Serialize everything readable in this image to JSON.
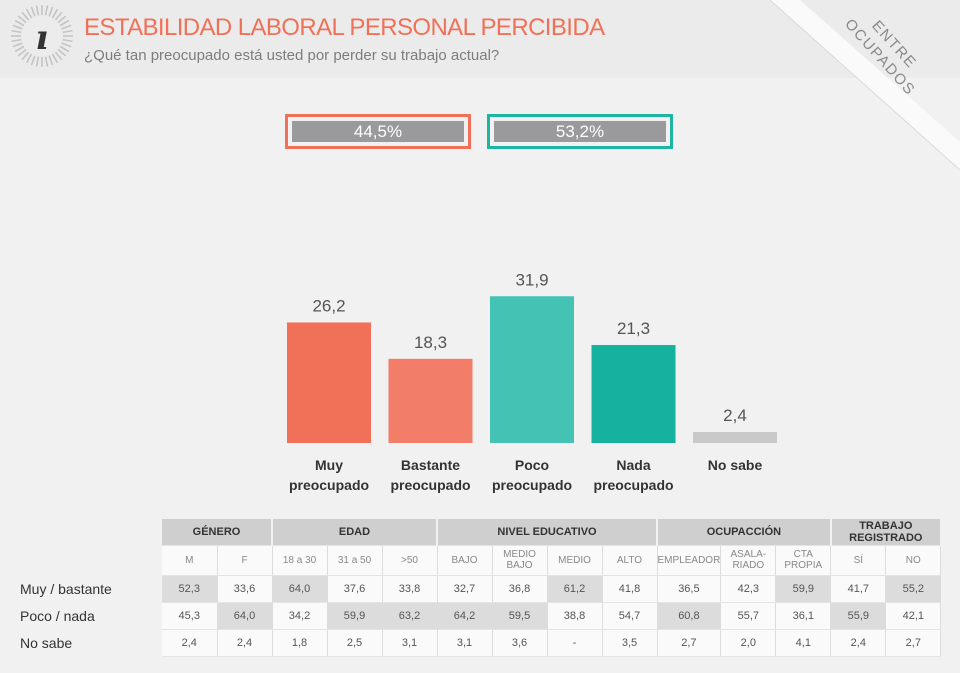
{
  "header": {
    "title": "ESTABILIDAD LABORAL PERSONAL PERCIBIDA",
    "subtitle": "¿Qué tan preocupado está usted por perder su trabajo actual?",
    "corner_label_1": "ENTRE",
    "corner_label_2": "OCUPADOS"
  },
  "summary": {
    "concerned": "44,5%",
    "not_concerned": "53,2%",
    "concerned_color": "#f07158",
    "not_concerned_color": "#1fb5a5"
  },
  "chart_data": {
    "type": "bar",
    "categories": [
      [
        "Muy",
        "preocupado"
      ],
      [
        "Bastante",
        "preocupado"
      ],
      [
        "Poco",
        "preocupado"
      ],
      [
        "Nada",
        "preocupado"
      ],
      [
        "No sabe"
      ]
    ],
    "values": [
      26.2,
      18.3,
      31.9,
      21.3,
      2.4
    ],
    "value_labels": [
      "26,2",
      "18,3",
      "31,9",
      "21,3",
      "2,4"
    ],
    "colors": [
      "#f07158",
      "#f27d68",
      "#44c3b4",
      "#14b29f",
      "#c9c9c9"
    ],
    "grid": false,
    "legend": "none"
  },
  "table": {
    "groups": [
      {
        "label": "GÉNERO",
        "span": 2
      },
      {
        "label": "EDAD",
        "span": 3
      },
      {
        "label": "NIVEL EDUCATIVO",
        "span": 4
      },
      {
        "label": "OCUPACCIÓN",
        "span": 3
      },
      {
        "label": "TRABAJO REGISTRADO",
        "span": 2
      }
    ],
    "subheaders": [
      [
        "M"
      ],
      [
        "F"
      ],
      [
        "18 a 30"
      ],
      [
        "31 a 50"
      ],
      [
        ">50"
      ],
      [
        "BAJO"
      ],
      [
        "MEDIO BAJO"
      ],
      [
        "MEDIO"
      ],
      [
        "ALTO"
      ],
      [
        "EMPLEADOR"
      ],
      [
        "ASALA-",
        "RIADO"
      ],
      [
        "CTA",
        "PROPIA"
      ],
      [
        "SÍ"
      ],
      [
        "NO"
      ]
    ],
    "rows": [
      {
        "label": "Muy / bastante",
        "values": [
          "52,3",
          "33,6",
          "64,0",
          "37,6",
          "33,8",
          "32,7",
          "36,8",
          "61,2",
          "41,8",
          "36,5",
          "42,3",
          "59,9",
          "41,7",
          "55,2"
        ],
        "highlight": [
          0,
          2,
          7,
          11,
          13
        ]
      },
      {
        "label": "Poco / nada",
        "values": [
          "45,3",
          "64,0",
          "34,2",
          "59,9",
          "63,2",
          "64,2",
          "59,5",
          "38,8",
          "54,7",
          "60,8",
          "55,7",
          "36,1",
          "55,9",
          "42,1"
        ],
        "highlight": [
          1,
          3,
          4,
          5,
          6,
          9,
          12
        ]
      },
      {
        "label": "No sabe",
        "values": [
          "2,4",
          "2,4",
          "1,8",
          "2,5",
          "3,1",
          "3,1",
          "3,6",
          "-",
          "3,5",
          "2,7",
          "2,0",
          "4,1",
          "2,4",
          "2,7"
        ],
        "highlight": []
      }
    ]
  }
}
